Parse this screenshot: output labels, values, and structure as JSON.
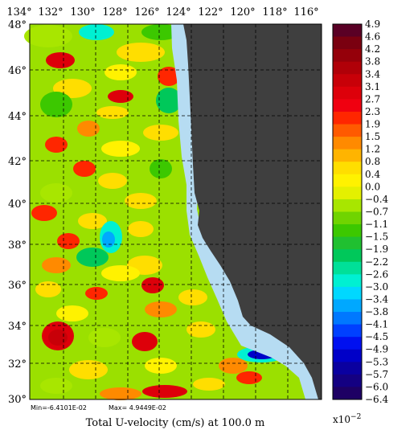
{
  "map": {
    "title": "Total U-velocity (cm/s) at 100.0 m",
    "stats": {
      "min_label": "Min=-6.4101E-02",
      "max_label": "Max= 4.9449E-02"
    },
    "lon_labels": [
      "134°",
      "132°",
      "130°",
      "128°",
      "126°",
      "124°",
      "122°",
      "120°",
      "118°",
      "116°"
    ],
    "lat_labels": [
      "48°",
      "46°",
      "44°",
      "42°",
      "40°",
      "38°",
      "36°",
      "34°",
      "32°",
      "30°"
    ],
    "colorbar": {
      "scale_label": "x10",
      "scale_exponent": "−2",
      "labels": [
        "4.9",
        "4.6",
        "4.2",
        "3.8",
        "3.4",
        "3.1",
        "2.7",
        "2.3",
        "1.9",
        "1.5",
        "1.2",
        "0.8",
        "0.4",
        "0.0",
        "−0.4",
        "−0.7",
        "−1.1",
        "−1.5",
        "−1.9",
        "−2.2",
        "−2.6",
        "−3.0",
        "−3.4",
        "−3.8",
        "−4.1",
        "−4.5",
        "−4.9",
        "−5.3",
        "−5.7",
        "−6.0",
        "−6.4"
      ],
      "colors": [
        "#5a0025",
        "#7a0010",
        "#95000a",
        "#b00008",
        "#c80008",
        "#dd000a",
        "#f00010",
        "#ff2600",
        "#ff5a00",
        "#ff8a00",
        "#ffb400",
        "#ffde00",
        "#fff200",
        "#e4f000",
        "#a8e600",
        "#70d400",
        "#3cc800",
        "#20c030",
        "#00c85a",
        "#00e098",
        "#00f0d2",
        "#00d8ff",
        "#00a8ff",
        "#0078ff",
        "#0040ff",
        "#0010f0",
        "#0000c8",
        "#0a00a0",
        "#140082",
        "#1e0064"
      ]
    },
    "land_color": "#3f3f3f",
    "shelf_color": "#b6dcf2"
  }
}
